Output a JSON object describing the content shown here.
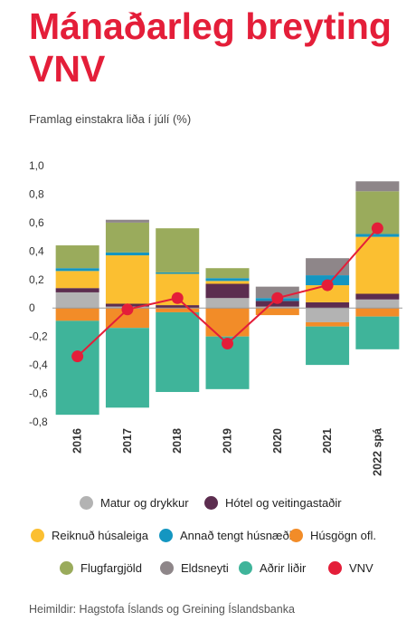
{
  "title": "Mánaðarleg breyting VNV",
  "subtitle": "Framlag einstakra liða í júlí (%)",
  "source": "Heimildir: Hagstofa Íslands og Greining Íslandsbanka",
  "colors": {
    "matur": "#b3b3b3",
    "hotel": "#5c2d4f",
    "husaleiga": "#fbbf31",
    "annad": "#1496c1",
    "husgogn": "#f28c28",
    "flug": "#9aab5c",
    "eldsneyti": "#8e8689",
    "adrir": "#3fb49a",
    "vnv": "#e41e39"
  },
  "chart_data": {
    "type": "bar",
    "stacked": true,
    "title": "Mánaðarleg breyting VNV",
    "subtitle": "Framlag einstakra liða í júlí (%)",
    "categories": [
      "2016",
      "2017",
      "2018",
      "2019",
      "2020",
      "2021",
      "2022 spá"
    ],
    "ylim": [
      -0.8,
      1.0
    ],
    "yticks": [
      1.0,
      0.8,
      0.6,
      0.4,
      0.2,
      0,
      -0.2,
      -0.4,
      -0.6,
      -0.8
    ],
    "ytick_labels": [
      "1,0",
      "0,8",
      "0,6",
      "0,4",
      "0,2",
      "0",
      "-0,2",
      "-0,4",
      "-0,6",
      "-0,8"
    ],
    "grid": false,
    "legend_position": "bottom",
    "series": [
      {
        "name": "Matur og drykkur",
        "key": "matur",
        "values": [
          0.11,
          0.01,
          0.0,
          0.07,
          0.01,
          -0.1,
          0.06
        ]
      },
      {
        "name": "Hótel og veitingastaðir",
        "key": "hotel",
        "values": [
          0.03,
          0.02,
          0.02,
          0.1,
          0.04,
          0.04,
          0.04
        ]
      },
      {
        "name": "Reiknuð húsaleiga",
        "key": "husaleiga",
        "values": [
          0.12,
          0.34,
          0.22,
          0.02,
          0.0,
          0.12,
          0.4
        ]
      },
      {
        "name": "Annað tengt húsnæði",
        "key": "annad",
        "values": [
          0.02,
          0.02,
          0.01,
          0.02,
          0.02,
          0.07,
          0.02
        ]
      },
      {
        "name": "Húsgögn ofl.",
        "key": "husgogn",
        "values": [
          -0.09,
          -0.14,
          -0.03,
          -0.2,
          -0.05,
          -0.03,
          -0.06
        ]
      },
      {
        "name": "Flugfargjöld",
        "key": "flug",
        "values": [
          0.16,
          0.21,
          0.31,
          0.07,
          0.0,
          0.0,
          0.3
        ]
      },
      {
        "name": "Eldsneyti",
        "key": "eldsneyti",
        "values": [
          0.0,
          0.02,
          0.0,
          0.0,
          0.08,
          0.12,
          0.07
        ]
      },
      {
        "name": "Aðrir liðir",
        "key": "adrir",
        "values": [
          -0.66,
          -0.56,
          -0.56,
          -0.37,
          0.0,
          -0.27,
          -0.23
        ]
      }
    ],
    "line": {
      "name": "VNV",
      "key": "vnv",
      "values": [
        -0.34,
        -0.01,
        0.07,
        -0.25,
        0.07,
        0.16,
        0.56
      ]
    }
  },
  "legend": [
    {
      "key": "matur",
      "label": "Matur og drykkur"
    },
    {
      "key": "hotel",
      "label": "Hótel og veitingastaðir"
    },
    {
      "key": "husaleiga",
      "label": "Reiknuð húsaleiga"
    },
    {
      "key": "annad",
      "label": "Annað tengt húsnæði"
    },
    {
      "key": "husgogn",
      "label": "Húsgögn ofl."
    },
    {
      "key": "flug",
      "label": "Flugfargjöld"
    },
    {
      "key": "eldsneyti",
      "label": "Eldsneyti"
    },
    {
      "key": "adrir",
      "label": "Aðrir liðir"
    },
    {
      "key": "vnv",
      "label": "VNV"
    }
  ]
}
